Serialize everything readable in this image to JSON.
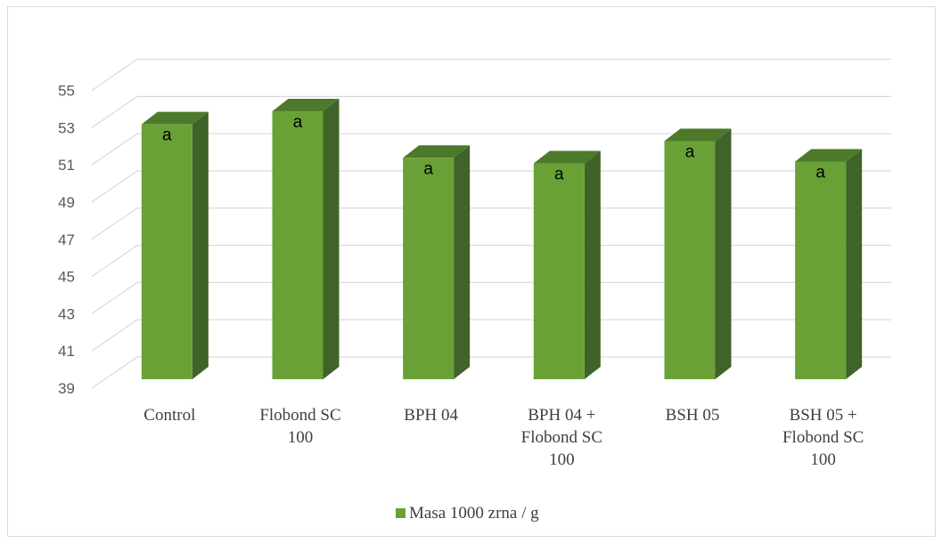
{
  "chart_data": {
    "type": "bar",
    "style": "3d-column",
    "categories": [
      [
        "Control"
      ],
      [
        "Flobond SC",
        "100"
      ],
      [
        "BPH 04"
      ],
      [
        "BPH 04 +",
        "Flobond SC",
        "100"
      ],
      [
        "BSH 05"
      ],
      [
        "BSH 05 +",
        "Flobond SC",
        "100"
      ]
    ],
    "series": [
      {
        "name": "Masa 1000 zrna / g",
        "color": "#6aa136",
        "values": [
          52.7,
          53.4,
          50.9,
          50.6,
          51.8,
          50.7
        ],
        "labels": [
          "a",
          "a",
          "a",
          "a",
          "a",
          "a"
        ]
      }
    ],
    "yticks": [
      "39",
      "41",
      "43",
      "45",
      "47",
      "49",
      "51",
      "53",
      "55"
    ],
    "ylim": [
      39,
      55
    ],
    "grid": true,
    "legend": "bottom",
    "title": "",
    "xlabel": "",
    "ylabel": ""
  }
}
